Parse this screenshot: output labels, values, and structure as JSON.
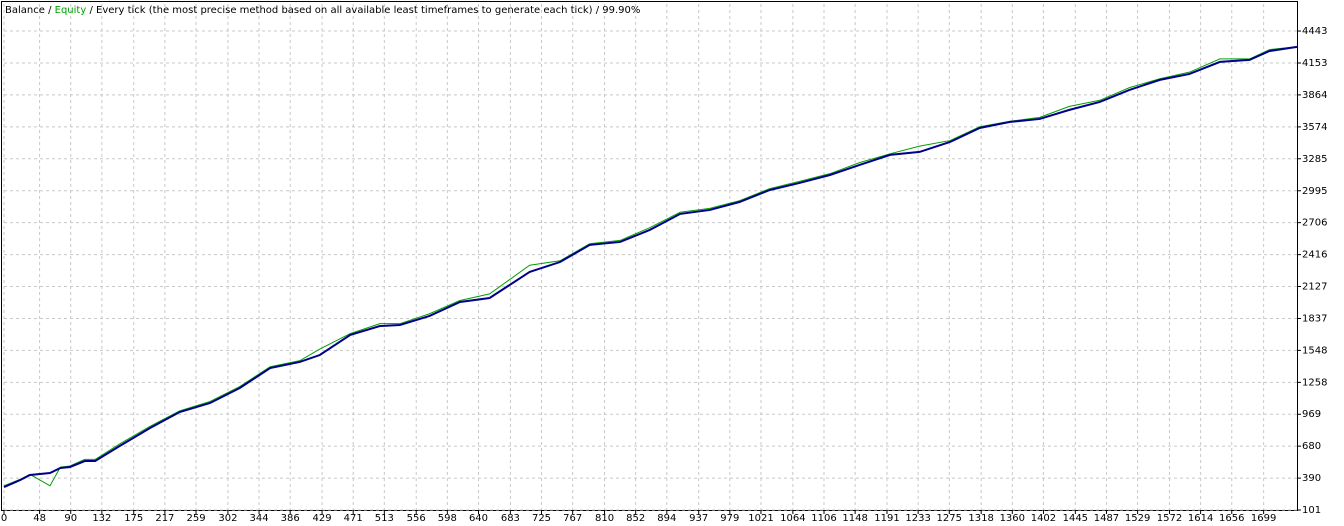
{
  "chart_data": {
    "type": "line",
    "separator": "/",
    "model": "Every tick (the most precise method based on all available least timeframes to generate each tick)",
    "quality": "99.90%",
    "x": [
      0,
      22,
      35,
      62,
      76,
      89,
      109,
      123,
      156,
      197,
      237,
      278,
      318,
      359,
      399,
      426,
      467,
      507,
      534,
      574,
      615,
      655,
      709,
      750,
      790,
      831,
      871,
      912,
      952,
      992,
      1033,
      1073,
      1114,
      1154,
      1195,
      1235,
      1276,
      1316,
      1357,
      1397,
      1437,
      1478,
      1518,
      1559,
      1599,
      1640,
      1680,
      1707,
      1744
    ],
    "series": [
      {
        "name": "Balance",
        "color": "#00008b",
        "values": [
          309,
          373,
          418,
          436,
          482,
          491,
          545,
          545,
          681,
          844,
          989,
          1071,
          1207,
          1388,
          1443,
          1506,
          1688,
          1769,
          1778,
          1860,
          1987,
          2023,
          2259,
          2349,
          2504,
          2531,
          2640,
          2785,
          2821,
          2893,
          3002,
          3066,
          3138,
          3229,
          3320,
          3347,
          3437,
          3564,
          3619,
          3646,
          3728,
          3800,
          3909,
          4000,
          4054,
          4163,
          4181,
          4262,
          4299
        ]
      },
      {
        "name": "Equity",
        "color": "#00a000",
        "values": [
          320,
          380,
          425,
          320,
          490,
          500,
          560,
          560,
          700,
          860,
          1000,
          1085,
          1220,
          1400,
          1455,
          1560,
          1700,
          1790,
          1790,
          1880,
          2000,
          2060,
          2320,
          2360,
          2515,
          2545,
          2660,
          2800,
          2835,
          2905,
          3015,
          3080,
          3150,
          3250,
          3330,
          3400,
          3450,
          3575,
          3625,
          3660,
          3760,
          3815,
          3930,
          4010,
          4070,
          4190,
          4190,
          4275,
          4300
        ]
      }
    ],
    "xlim": [
      0,
      1744
    ],
    "xticks": [
      0,
      48,
      90,
      132,
      175,
      217,
      259,
      302,
      344,
      386,
      429,
      471,
      513,
      556,
      598,
      640,
      683,
      725,
      767,
      810,
      852,
      894,
      937,
      979,
      1021,
      1064,
      1106,
      1148,
      1191,
      1233,
      1275,
      1318,
      1360,
      1402,
      1445,
      1487,
      1529,
      1572,
      1614,
      1656,
      1699
    ],
    "ylim": [
      101,
      4688
    ],
    "yticks": [
      101,
      390,
      680,
      969,
      1258,
      1548,
      1837,
      2127,
      2416,
      2706,
      2995,
      3285,
      3574,
      3864,
      4153,
      4443
    ],
    "grid": true
  }
}
